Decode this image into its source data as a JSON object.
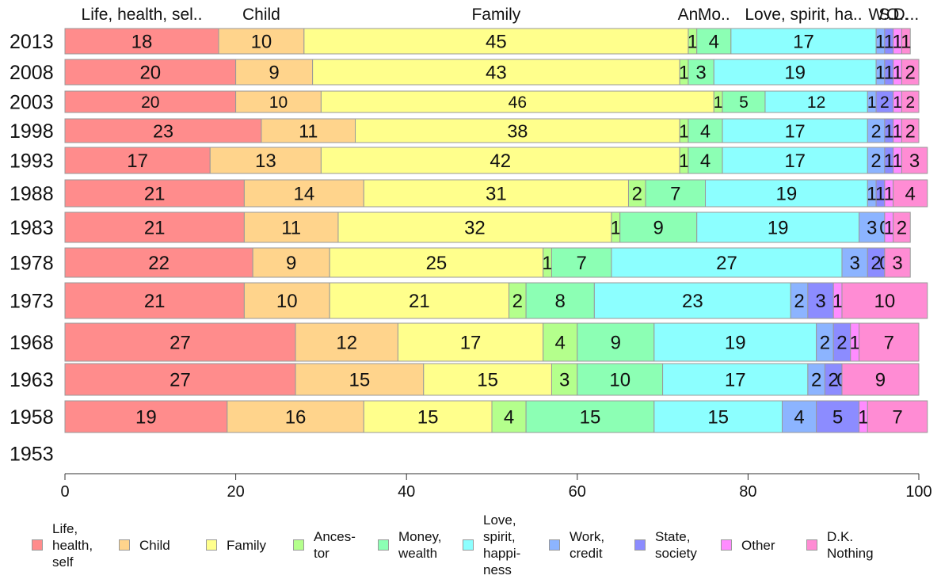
{
  "chart_data": {
    "type": "bar",
    "orientation": "horizontal",
    "stacked": true,
    "categories": [
      "2013",
      "2008",
      "2003",
      "1998",
      "1993",
      "1988",
      "1983",
      "1978",
      "1973",
      "1968",
      "1963",
      "1958",
      "1953"
    ],
    "top_labels": [
      "Life, health, sel..",
      "Child",
      "Family",
      "An..",
      "Mo..",
      "Love, spirit, ha..",
      "W..",
      "S..",
      "O..",
      "D..."
    ],
    "series": [
      {
        "name": "Life, health, self",
        "legend": "Life,\nhealth,\nself",
        "color": "#ff8c8c",
        "values": [
          18,
          20,
          20,
          23,
          17,
          21,
          21,
          22,
          21,
          27,
          27,
          19,
          null
        ]
      },
      {
        "name": "Child",
        "legend": "Child",
        "color": "#ffd48c",
        "values": [
          10,
          9,
          10,
          11,
          13,
          14,
          11,
          9,
          10,
          12,
          15,
          16,
          null
        ]
      },
      {
        "name": "Family",
        "legend": "Family",
        "color": "#ffff8c",
        "values": [
          45,
          43,
          46,
          38,
          42,
          31,
          32,
          25,
          21,
          17,
          15,
          15,
          null
        ]
      },
      {
        "name": "Ancestor",
        "legend": "Ances-\ntor",
        "color": "#b4ff8c",
        "values": [
          1,
          1,
          1,
          1,
          1,
          2,
          1,
          1,
          2,
          4,
          3,
          4,
          null
        ]
      },
      {
        "name": "Money, wealth",
        "legend": "Money,\nwealth",
        "color": "#8cffb4",
        "values": [
          4,
          3,
          5,
          4,
          4,
          7,
          9,
          7,
          8,
          9,
          10,
          15,
          null
        ]
      },
      {
        "name": "Love, spirit, happiness",
        "legend": "Love,\nspirit,\nhappi-\nness",
        "color": "#8cffff",
        "values": [
          17,
          19,
          12,
          17,
          17,
          19,
          19,
          27,
          23,
          19,
          17,
          15,
          null
        ]
      },
      {
        "name": "Work, credit",
        "legend": "Work,\ncredit",
        "color": "#8cb4ff",
        "values": [
          1,
          1,
          1,
          2,
          2,
          1,
          3,
          3,
          2,
          2,
          2,
          4,
          null
        ]
      },
      {
        "name": "State, society",
        "legend": "State,\nsociety",
        "color": "#8c8cff",
        "values": [
          1,
          1,
          2,
          1,
          1,
          1,
          0,
          2,
          3,
          2,
          2,
          5,
          null
        ]
      },
      {
        "name": "Other",
        "legend": "Other",
        "color": "#ff8cff",
        "values": [
          1,
          1,
          1,
          1,
          1,
          1,
          1,
          0,
          1,
          1,
          0,
          1,
          null
        ]
      },
      {
        "name": "D.K. Nothing",
        "legend": "D.K.\nNothing",
        "color": "#ff8cd4",
        "values": [
          1,
          2,
          2,
          2,
          3,
          4,
          2,
          3,
          10,
          7,
          9,
          7,
          null
        ]
      }
    ],
    "xlim": [
      0,
      100
    ],
    "xticks": [
      0,
      20,
      40,
      60,
      80,
      100
    ],
    "grid": false,
    "legend_position": "bottom",
    "bar_outline_color": "#999999",
    "axis_color": "#333333"
  }
}
